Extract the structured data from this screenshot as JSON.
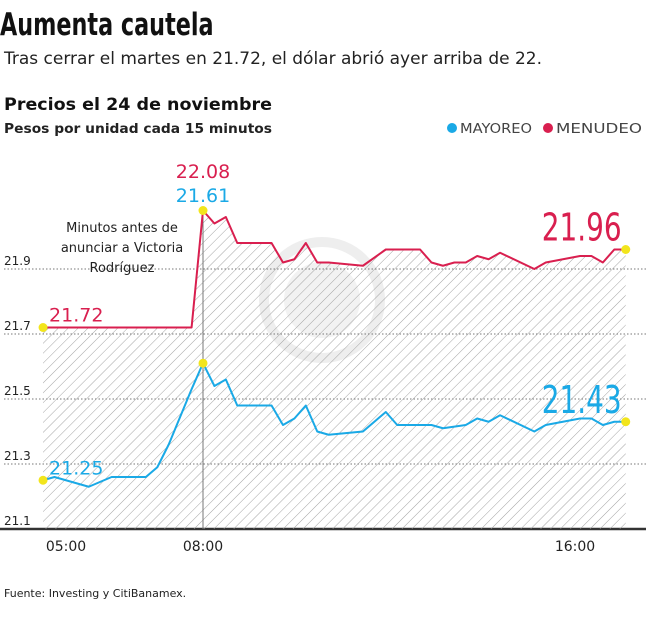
{
  "header": {
    "title": "Aumenta cautela",
    "subtitle": "Tras cerrar el martes en 21.72, el dólar abrió ayer arriba de 22."
  },
  "chart_data": {
    "type": "line",
    "title": "Precios el 24 de noviembre",
    "subtitle": "Pesos por unidad cada 15 minutos",
    "x_ticks": [
      "05:00",
      "08:00",
      "16:00"
    ],
    "y_ticks": [
      "21.1",
      "21.3",
      "21.5",
      "21.7",
      "21.9"
    ],
    "ylim": [
      21.1,
      22.1
    ],
    "grid": "horizontal dotted",
    "legend_placement": "top-right",
    "annotation": {
      "time": "08:00",
      "lines": [
        "Minutos antes de",
        "anunciar a Victoria",
        "Rodríguez"
      ]
    },
    "series": [
      {
        "name": "MAYOREO",
        "color": "#1aa9e6",
        "start_label": "21.25",
        "peak_label": "21.61",
        "end_label": "21.43",
        "points": [
          [
            "04:30",
            21.25
          ],
          [
            "04:45",
            21.26
          ],
          [
            "05:00",
            21.25
          ],
          [
            "05:30",
            21.23
          ],
          [
            "06:00",
            21.26
          ],
          [
            "06:45",
            21.26
          ],
          [
            "07:00",
            21.29
          ],
          [
            "07:15",
            21.36
          ],
          [
            "07:45",
            21.53
          ],
          [
            "08:00",
            21.61
          ],
          [
            "08:15",
            21.54
          ],
          [
            "08:30",
            21.56
          ],
          [
            "08:45",
            21.48
          ],
          [
            "09:30",
            21.48
          ],
          [
            "09:45",
            21.42
          ],
          [
            "10:00",
            21.44
          ],
          [
            "10:15",
            21.48
          ],
          [
            "10:30",
            21.4
          ],
          [
            "10:45",
            21.39
          ],
          [
            "11:30",
            21.4
          ],
          [
            "12:00",
            21.46
          ],
          [
            "12:15",
            21.42
          ],
          [
            "13:00",
            21.42
          ],
          [
            "13:15",
            21.41
          ],
          [
            "13:45",
            21.42
          ],
          [
            "14:00",
            21.44
          ],
          [
            "14:15",
            21.43
          ],
          [
            "14:30",
            21.45
          ],
          [
            "15:15",
            21.4
          ],
          [
            "15:30",
            21.42
          ],
          [
            "16:15",
            21.44
          ],
          [
            "16:30",
            21.44
          ],
          [
            "16:45",
            21.42
          ],
          [
            "17:00",
            21.43
          ],
          [
            "17:15",
            21.43
          ]
        ]
      },
      {
        "name": "MENUDEO",
        "color": "#d91f4f",
        "start_label": "21.72",
        "peak_label": "22.08",
        "end_label": "21.96",
        "points": [
          [
            "04:30",
            21.72
          ],
          [
            "07:45",
            21.72
          ],
          [
            "08:00",
            22.08
          ],
          [
            "08:15",
            22.04
          ],
          [
            "08:30",
            22.06
          ],
          [
            "08:45",
            21.98
          ],
          [
            "09:30",
            21.98
          ],
          [
            "09:45",
            21.92
          ],
          [
            "10:00",
            21.93
          ],
          [
            "10:15",
            21.98
          ],
          [
            "10:30",
            21.92
          ],
          [
            "10:45",
            21.92
          ],
          [
            "11:30",
            21.91
          ],
          [
            "12:00",
            21.96
          ],
          [
            "12:45",
            21.96
          ],
          [
            "13:00",
            21.92
          ],
          [
            "13:15",
            21.91
          ],
          [
            "13:30",
            21.92
          ],
          [
            "13:45",
            21.92
          ],
          [
            "14:00",
            21.94
          ],
          [
            "14:15",
            21.93
          ],
          [
            "14:30",
            21.95
          ],
          [
            "15:15",
            21.9
          ],
          [
            "15:30",
            21.92
          ],
          [
            "16:15",
            21.94
          ],
          [
            "16:30",
            21.94
          ],
          [
            "16:45",
            21.92
          ],
          [
            "17:00",
            21.96
          ],
          [
            "17:15",
            21.96
          ]
        ]
      }
    ],
    "marker_color": "#f2e51c"
  },
  "footer": {
    "source": "Fuente: Investing y CitiBanamex."
  }
}
